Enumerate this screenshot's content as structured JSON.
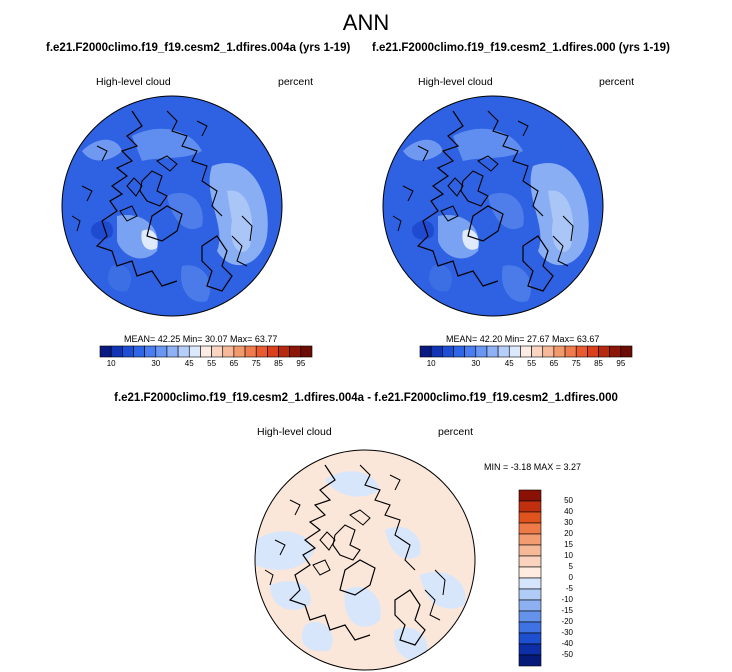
{
  "title": "ANN",
  "panels": [
    {
      "case": "f.e21.F2000climo.f19_f19.cesm2_1.dfires.004a (yrs 1-19)",
      "variable": "High-level cloud",
      "units": "percent",
      "stats": {
        "mean": "42.25",
        "min": "30.07",
        "max": "63.77"
      },
      "stats_text": "MEAN=  42.25  Min=  30.07  Max=  63.77"
    },
    {
      "case": "f.e21.F2000climo.f19_f19.cesm2_1.dfires.000 (yrs 1-19)",
      "variable": "High-level cloud",
      "units": "percent",
      "stats": {
        "mean": "42.20",
        "min": "27.67",
        "max": "63.67"
      },
      "stats_text": "MEAN=  42.20  Min=  27.67  Max=  63.67"
    }
  ],
  "difference": {
    "title": "f.e21.F2000climo.f19_f19.cesm2_1.dfires.004a - f.e21.F2000climo.f19_f19.cesm2_1.dfires.000",
    "variable": "High-level cloud",
    "units": "percent",
    "stats": {
      "min": "-3.18",
      "max": "3.27"
    },
    "stats_text": "MIN =  -3.18  MAX =   3.27"
  },
  "chart_data": [
    {
      "type": "heatmap",
      "projection": "north polar stereographic",
      "variable": "High-level cloud",
      "units": "percent",
      "colorbar_levels": [
        10,
        15,
        20,
        25,
        30,
        35,
        40,
        45,
        50,
        55,
        60,
        65,
        70,
        75,
        80,
        85,
        90,
        95
      ],
      "colorbar_labels": [
        "10",
        "30",
        "45",
        "55",
        "65",
        "75",
        "85",
        "95"
      ],
      "colorbar_colors": [
        "#0a1a80",
        "#1034b4",
        "#1a4fd6",
        "#2f66e6",
        "#4a7df0",
        "#6a97f4",
        "#8fb2f7",
        "#b6cffa",
        "#dce8fc",
        "#fcece4",
        "#f9d4c0",
        "#f6b896",
        "#f39a6c",
        "#ef7c4c",
        "#e85b2e",
        "#d8411a",
        "#b82a10",
        "#8c1608",
        "#6b0d04"
      ],
      "mean": 42.25,
      "min": 30.07,
      "max": 63.77
    },
    {
      "type": "heatmap",
      "projection": "north polar stereographic",
      "variable": "High-level cloud",
      "units": "percent",
      "colorbar_levels": [
        10,
        15,
        20,
        25,
        30,
        35,
        40,
        45,
        50,
        55,
        60,
        65,
        70,
        75,
        80,
        85,
        90,
        95
      ],
      "colorbar_labels": [
        "10",
        "30",
        "45",
        "55",
        "65",
        "75",
        "85",
        "95"
      ],
      "colorbar_colors": [
        "#0a1a80",
        "#1034b4",
        "#1a4fd6",
        "#2f66e6",
        "#4a7df0",
        "#6a97f4",
        "#8fb2f7",
        "#b6cffa",
        "#dce8fc",
        "#fcece4",
        "#f9d4c0",
        "#f6b896",
        "#f39a6c",
        "#ef7c4c",
        "#e85b2e",
        "#d8411a",
        "#b82a10",
        "#8c1608",
        "#6b0d04"
      ],
      "mean": 42.2,
      "min": 27.67,
      "max": 63.67
    },
    {
      "type": "heatmap",
      "projection": "north polar stereographic",
      "variable": "High-level cloud",
      "units": "percent",
      "colorbar_levels": [
        -50,
        -40,
        -30,
        -20,
        -15,
        -10,
        -5,
        0,
        5,
        10,
        15,
        20,
        30,
        40,
        50
      ],
      "colorbar_labels": [
        "50",
        "40",
        "30",
        "20",
        "15",
        "10",
        "5",
        "0",
        "-5",
        "-10",
        "-15",
        "-20",
        "-30",
        "-40",
        "-50"
      ],
      "colorbar_colors": [
        "#8a1204",
        "#c0300e",
        "#e0531f",
        "#ee7a47",
        "#f39b71",
        "#f6b998",
        "#f9d3bd",
        "#fdecdf",
        "#d6e5fb",
        "#b1ccf7",
        "#8cb0f2",
        "#6593ec",
        "#3f72e2",
        "#1d4fce",
        "#0c2ea6",
        "#061a7a"
      ],
      "min": -3.18,
      "max": 3.27
    }
  ]
}
